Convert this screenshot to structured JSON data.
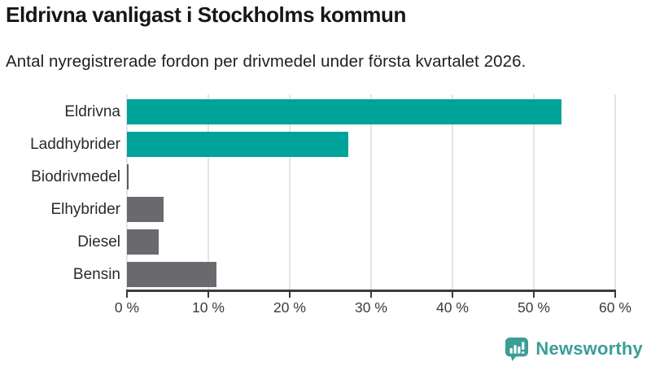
{
  "header": {
    "title": "Eldrivna vanligast i Stockholms kommun",
    "subtitle": "Antal nyregistrerade fordon per drivmedel under första kvartalet 2026."
  },
  "chart_data": {
    "type": "bar",
    "orientation": "horizontal",
    "title": "Eldrivna vanligast i Stockholms kommun",
    "subtitle": "Antal nyregistrerade fordon per drivmedel under första kvartalet 2026.",
    "categories": [
      "Eldrivna",
      "Laddhybrider",
      "Biodrivmedel",
      "Elhybrider",
      "Diesel",
      "Bensin"
    ],
    "values": [
      53.4,
      27.2,
      0.2,
      4.5,
      3.9,
      11.0
    ],
    "unit": "%",
    "bar_colors": [
      "#00a39a",
      "#00a39a",
      "#5d5d62",
      "#6a6a6e",
      "#6a6a6e",
      "#6a6a6e"
    ],
    "xlim": [
      0,
      60
    ],
    "x_ticks": [
      "0 %",
      "10 %",
      "20 %",
      "30 %",
      "40 %",
      "50 %",
      "60 %"
    ],
    "x_tick_values": [
      0,
      10,
      20,
      30,
      40,
      50,
      60
    ],
    "grid": true,
    "legend": "none",
    "accent_color": "#00a39a",
    "neutral_color": "#6a6a6e"
  },
  "branding": {
    "logo_text": "Newsworthy",
    "logo_color": "#3a9e96",
    "logo_icon": "newsworthy-bar-chart-bubble-icon"
  }
}
